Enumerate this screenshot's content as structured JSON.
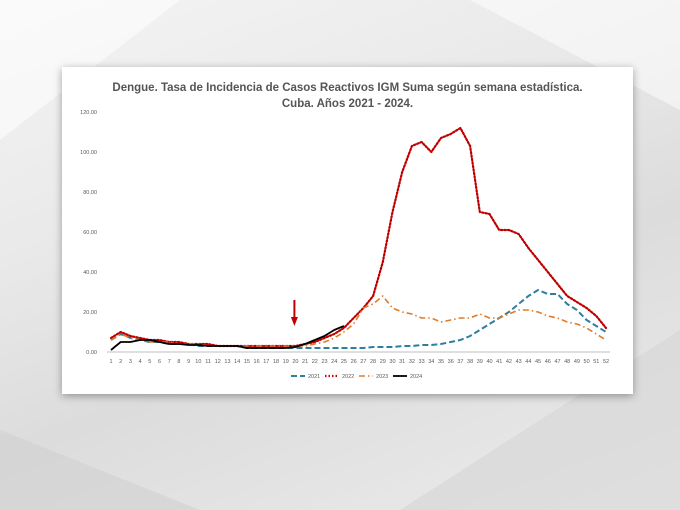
{
  "colors": {
    "s2021": "#2e7ea0",
    "s2022": "#c00000",
    "s2023": "#e07b2a",
    "s2024": "#000000",
    "arrow": "#c00000",
    "axis": "#bfbfbf"
  },
  "chart_data": {
    "type": "line",
    "title": "Dengue. Tasa de Incidencia de Casos Reactivos IGM Suma según semana estadística.",
    "subtitle": "Cuba. Años 2021 - 2024.",
    "xlabel": "",
    "ylabel": "",
    "ylim": [
      0,
      120
    ],
    "y_ticks": [
      "0.00",
      "20.00",
      "40.00",
      "60.00",
      "80.00",
      "100.00",
      "120.00"
    ],
    "x": [
      "1",
      "2",
      "3",
      "4",
      "5",
      "6",
      "7",
      "8",
      "9",
      "10",
      "11",
      "12",
      "13",
      "14",
      "15",
      "16",
      "17",
      "18",
      "19",
      "20",
      "21",
      "22",
      "23",
      "24",
      "25",
      "26",
      "27",
      "28",
      "29",
      "30",
      "31",
      "32",
      "33",
      "34",
      "35",
      "36",
      "37",
      "38",
      "39",
      "40",
      "41",
      "42",
      "43",
      "44",
      "45",
      "46",
      "47",
      "48",
      "49",
      "50",
      "51",
      "52"
    ],
    "legend_position": "bottom",
    "grid": false,
    "annotation": {
      "type": "arrow",
      "x_week": 20
    },
    "series": [
      {
        "name": "2021",
        "style": "dashed",
        "values": [
          6,
          9,
          7,
          6,
          5,
          5,
          4,
          4,
          4,
          3,
          3,
          3,
          3,
          3,
          2,
          2,
          2,
          2,
          2,
          2,
          2,
          2,
          2,
          2,
          2,
          2,
          2,
          2.5,
          2.5,
          2.5,
          3,
          3,
          3.5,
          3.5,
          4,
          5,
          6,
          8,
          11,
          14,
          17,
          20,
          24,
          28,
          31,
          29,
          29,
          24,
          21,
          16,
          13,
          10
        ]
      },
      {
        "name": "2022",
        "style": "dotted",
        "values": [
          7,
          10,
          8,
          7,
          6,
          6,
          5,
          5,
          4,
          4,
          4,
          3,
          3,
          3,
          3,
          3,
          3,
          3,
          3,
          3,
          4,
          5,
          7,
          9,
          12,
          17,
          22,
          28,
          45,
          70,
          90,
          103,
          105,
          100,
          107,
          109,
          112,
          103,
          70,
          69,
          61,
          61,
          59,
          52,
          46,
          40,
          34,
          28,
          25,
          22,
          18,
          12
        ]
      },
      {
        "name": "2023",
        "style": "dashdot",
        "values": [
          6,
          9,
          7,
          6,
          5,
          5,
          5,
          4,
          4,
          4,
          3,
          3,
          3,
          3,
          3,
          3,
          3,
          3,
          3,
          3,
          3,
          4,
          5,
          7,
          10,
          14,
          22,
          24,
          28,
          22,
          20,
          19,
          17,
          17,
          15,
          16,
          17,
          17,
          19,
          17,
          17,
          19,
          21,
          21,
          20,
          18,
          17,
          15,
          14,
          12,
          9,
          6
        ]
      },
      {
        "name": "2024",
        "style": "solid",
        "values": [
          1,
          5,
          5,
          6,
          6,
          5,
          4,
          4,
          3.5,
          3.5,
          3,
          3,
          3,
          3,
          2,
          2,
          2,
          2,
          2,
          2.5,
          4,
          6,
          8,
          11,
          13,
          null,
          null,
          null,
          null,
          null,
          null,
          null,
          null,
          null,
          null,
          null,
          null,
          null,
          null,
          null,
          null,
          null,
          null,
          null,
          null,
          null,
          null,
          null,
          null,
          null,
          null,
          null
        ]
      }
    ]
  }
}
